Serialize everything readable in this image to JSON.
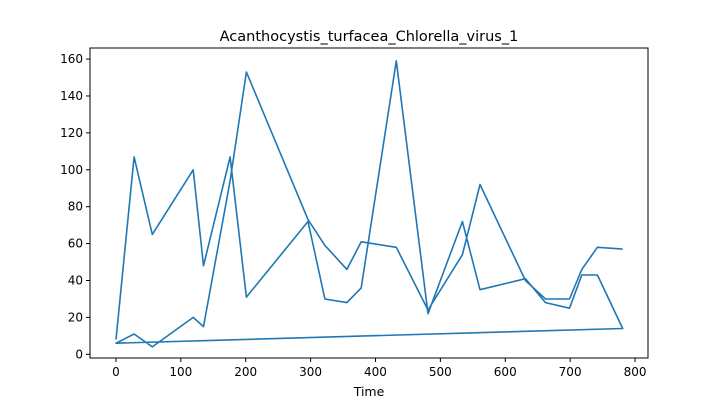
{
  "chart_data": {
    "type": "line",
    "title": "Acanthocystis_turfacea_Chlorella_virus_1",
    "xlabel": "Time",
    "ylabel": "",
    "xlim": [
      -40,
      820
    ],
    "ylim": [
      -2,
      166
    ],
    "xticks": [
      0,
      100,
      200,
      300,
      400,
      500,
      600,
      700,
      800
    ],
    "yticks": [
      0,
      20,
      40,
      60,
      80,
      100,
      120,
      140,
      160
    ],
    "grid": false,
    "series": [
      {
        "color": "#1f77b4",
        "x": [
          0,
          28,
          56,
          119,
          135,
          176,
          201,
          296,
          322,
          356,
          378,
          432,
          481,
          534,
          561,
          631,
          662,
          699,
          718,
          742,
          781,
          0,
          28,
          56,
          119,
          135,
          176,
          201,
          296,
          322,
          356,
          378,
          432,
          481,
          534,
          561,
          631,
          662,
          699,
          718,
          742,
          781
        ],
        "y": [
          8,
          107,
          65,
          100,
          48,
          107,
          31,
          72,
          30,
          28,
          36,
          159,
          22,
          72,
          35,
          41,
          28,
          25,
          43,
          43,
          14,
          6,
          11,
          4,
          20,
          15,
          94,
          153,
          73,
          59,
          46,
          61,
          58,
          24,
          54,
          92,
          40,
          30,
          30,
          46,
          58,
          57
        ]
      }
    ]
  }
}
